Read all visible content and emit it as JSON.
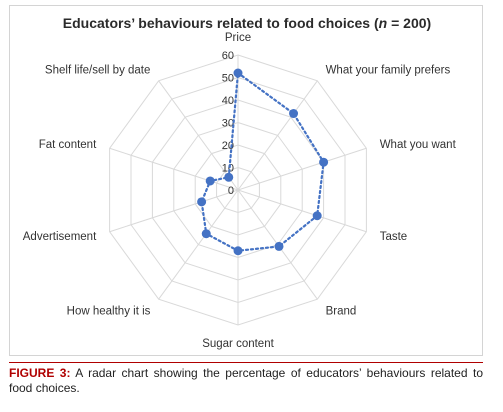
{
  "figure": {
    "title_prefix": "Educators’ behaviours related to food choices (",
    "title_n": "n",
    "title_suffix": " = 200)",
    "caption_label": "FIGURE 3:",
    "caption_text": " A radar chart showing the percentage of educators’ behaviours related to food choices."
  },
  "chart_data": {
    "type": "radar",
    "title": "Educators’ behaviours related to food choices (n = 200)",
    "categories": [
      "Price",
      "What your family prefers",
      "What you want",
      "Taste",
      "Brand",
      "Sugar content",
      "How healthy it is",
      "Advertisement",
      "Fat content",
      "Shelf life/sell by date"
    ],
    "series": [
      {
        "values": [
          52,
          42,
          40,
          37,
          31,
          27,
          24,
          17,
          13,
          7
        ]
      }
    ],
    "range": [
      0,
      60
    ],
    "ticks": [
      0,
      10,
      20,
      30,
      40,
      50,
      60
    ],
    "grid": true,
    "series_color": "#4472c4",
    "grid_color": "#d9d9d9"
  }
}
